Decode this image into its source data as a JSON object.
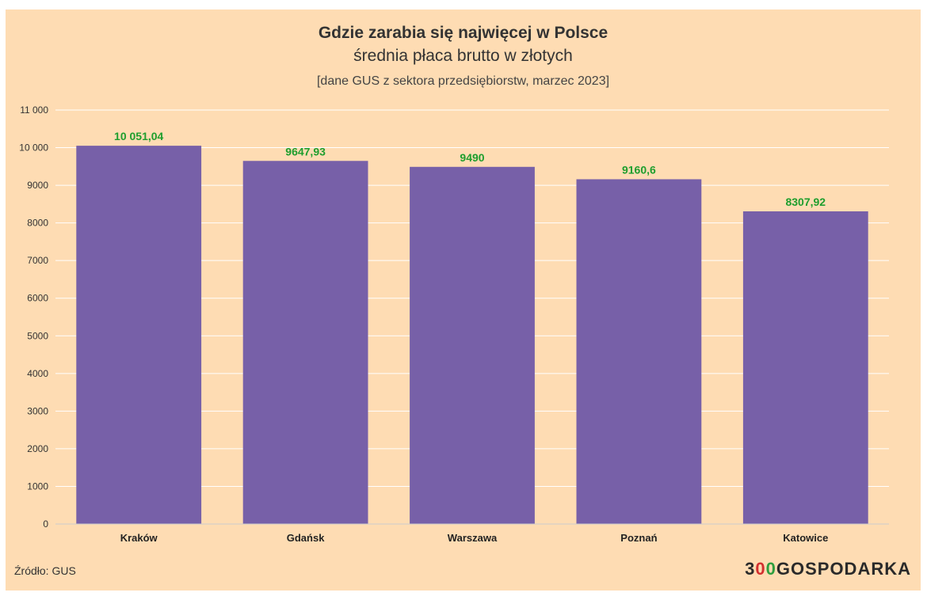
{
  "chart_data": {
    "type": "bar",
    "title": "Gdzie zarabia się najwięcej w Polsce",
    "subtitle": "średnia płaca brutto w złotych",
    "note": "[dane GUS z sektora przedsiębiorstw, marzec 2023]",
    "categories": [
      "Kraków",
      "Gdańsk",
      "Warszawa",
      "Poznań",
      "Katowice"
    ],
    "values": [
      10051.04,
      9647.93,
      9490,
      9160.6,
      8307.92
    ],
    "value_labels": [
      "10 051,04",
      "9647,93",
      "9490",
      "9160,6",
      "8307,92"
    ],
    "ylim": [
      0,
      11000
    ],
    "yticks": [
      0,
      1000,
      2000,
      3000,
      4000,
      5000,
      6000,
      7000,
      8000,
      9000,
      10000,
      11000
    ],
    "ytick_labels": [
      "0",
      "1000",
      "2000",
      "3000",
      "4000",
      "5000",
      "6000",
      "7000",
      "8000",
      "9000",
      "10 000",
      "11 000"
    ],
    "grid": true,
    "legend": "none",
    "colors": {
      "bar": "#7760a8",
      "value_label": "#1e9e2d",
      "background": "#fedcb3",
      "grid": "#ffffff"
    }
  },
  "footer": {
    "source": "Źródło: GUS",
    "logo": {
      "part1": "3",
      "part2": "0",
      "part3": "0",
      "part4": "GOSPODARKA"
    }
  }
}
